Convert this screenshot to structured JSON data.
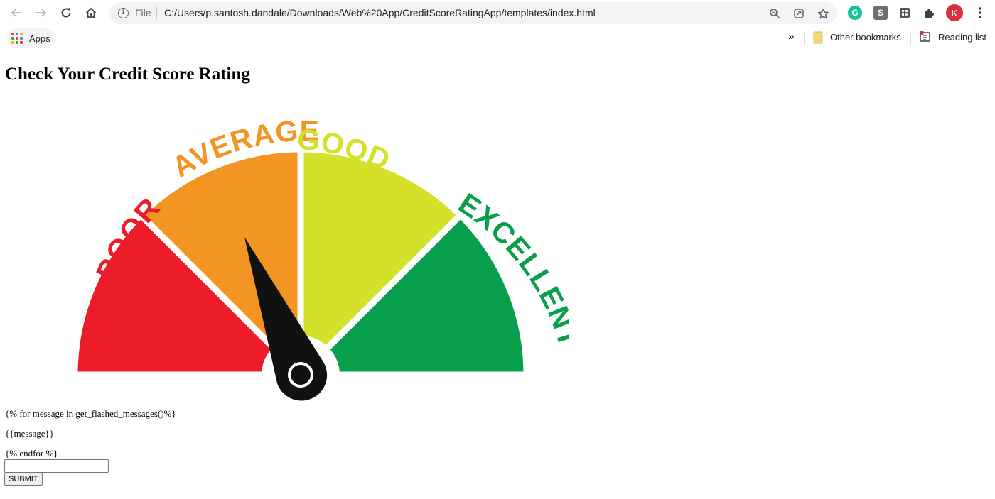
{
  "browser": {
    "file_label": "File",
    "url": "C:/Users/p.santosh.dandale/Downloads/Web%20App/CreditScoreRatingApp/templates/index.html",
    "profile_initial": "K",
    "grammarly_letter": "G",
    "ext_letter": "S",
    "bookmarks": {
      "apps_label": "Apps",
      "overflow": "»",
      "other_bookmarks": "Other bookmarks",
      "reading_list": "Reading list"
    }
  },
  "page": {
    "title": "Check Your Credit Score Rating",
    "gauge": {
      "segments": [
        {
          "label": "POOR",
          "color": "#ec1c29"
        },
        {
          "label": "AVERAGE",
          "color": "#f29523"
        },
        {
          "label": "GOOD",
          "color": "#d5e02a"
        },
        {
          "label": "EXCELLENT",
          "color": "#079e4c"
        }
      ],
      "needle_color": "#111111"
    },
    "template_lines": [
      "{% for message in get_flashed_messages()%}",
      "{{message}}",
      "{% endfor %}"
    ],
    "input_value": "",
    "submit_label": "SUBMIT"
  }
}
